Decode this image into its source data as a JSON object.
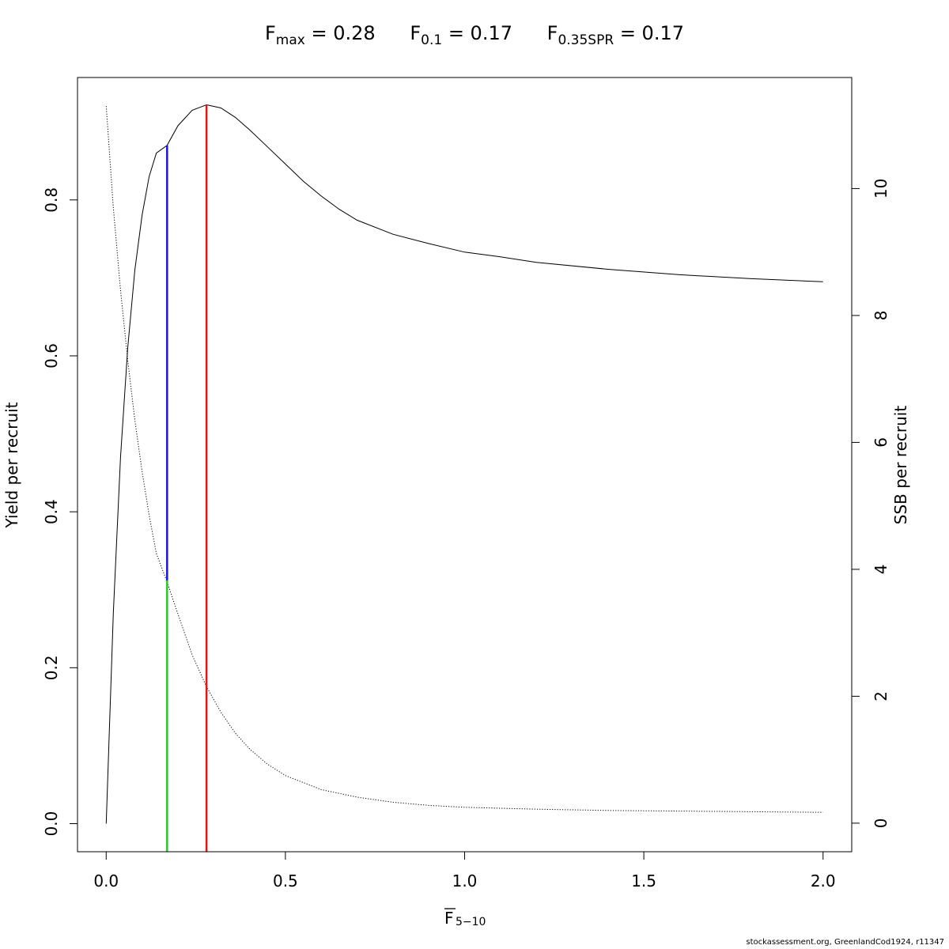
{
  "title_parts": {
    "fmax": {
      "sym": "F",
      "sub": "max",
      "val": "= 0.28"
    },
    "f01": {
      "sym": "F",
      "sub": "0.1",
      "val": "= 0.17"
    },
    "f35": {
      "sym": "F",
      "sub": "0.35SPR",
      "val": "= 0.17"
    }
  },
  "credit": "stockassessment.org, GreenlandCod1924, r11347",
  "chart_data": {
    "type": "line",
    "xlabel": {
      "main": "F",
      "sub": "5−10",
      "overline": true
    },
    "ylabel_left": "Yield per recruit",
    "ylabel_right": "SSB per recruit",
    "xlim": [
      -0.08,
      2.08
    ],
    "ylim_left": [
      -0.036,
      0.957
    ],
    "ylim_right": [
      -0.45,
      11.75
    ],
    "x_ticks": [
      0,
      0.5,
      1,
      1.5,
      2
    ],
    "x_tick_labels": [
      "0.0",
      "0.5",
      "1.0",
      "1.5",
      "2.0"
    ],
    "y_left_ticks": [
      0,
      0.2,
      0.4,
      0.6,
      0.8
    ],
    "y_left_tick_labels": [
      "0.0",
      "0.2",
      "0.4",
      "0.6",
      "0.8"
    ],
    "y_right_ticks": [
      0,
      2,
      4,
      6,
      8,
      10
    ],
    "y_right_tick_labels": [
      "0",
      "2",
      "4",
      "6",
      "8",
      "10"
    ],
    "grid": false,
    "series": [
      {
        "axis": "left",
        "style": "solid",
        "color": "#000000",
        "x": [
          0,
          0.02,
          0.04,
          0.06,
          0.08,
          0.1,
          0.12,
          0.14,
          0.17,
          0.2,
          0.24,
          0.28,
          0.32,
          0.36,
          0.4,
          0.45,
          0.5,
          0.55,
          0.6,
          0.65,
          0.7,
          0.8,
          0.9,
          1.0,
          1.1,
          1.2,
          1.4,
          1.6,
          1.8,
          2.0
        ],
        "y": [
          0,
          0.27,
          0.47,
          0.61,
          0.71,
          0.78,
          0.83,
          0.86,
          0.87,
          0.895,
          0.915,
          0.922,
          0.918,
          0.906,
          0.89,
          0.868,
          0.846,
          0.824,
          0.805,
          0.788,
          0.774,
          0.756,
          0.744,
          0.733,
          0.727,
          0.72,
          0.711,
          0.704,
          0.699,
          0.695
        ]
      },
      {
        "axis": "right",
        "style": "dotted",
        "color": "#000000",
        "x": [
          0,
          0.02,
          0.04,
          0.06,
          0.08,
          0.1,
          0.12,
          0.14,
          0.17,
          0.2,
          0.24,
          0.28,
          0.32,
          0.36,
          0.4,
          0.45,
          0.5,
          0.6,
          0.7,
          0.8,
          0.9,
          1.0,
          1.2,
          1.4,
          1.6,
          1.8,
          2.0
        ],
        "y": [
          11.3,
          9.7,
          8.4,
          7.3,
          6.35,
          5.55,
          4.85,
          4.25,
          3.8,
          3.3,
          2.65,
          2.15,
          1.75,
          1.42,
          1.17,
          0.93,
          0.75,
          0.53,
          0.41,
          0.33,
          0.28,
          0.25,
          0.22,
          0.2,
          0.19,
          0.18,
          0.17
        ]
      }
    ],
    "reference_lines": [
      {
        "x": 0.17,
        "y_from": -0.036,
        "y_to": 0.312,
        "color": "#22cc22"
      },
      {
        "x": 0.17,
        "y_from": 0.312,
        "y_to": 0.87,
        "color": "#1515e6"
      },
      {
        "x": 0.28,
        "y_from": -0.036,
        "y_to": 0.922,
        "color": "#ee1111"
      }
    ]
  }
}
